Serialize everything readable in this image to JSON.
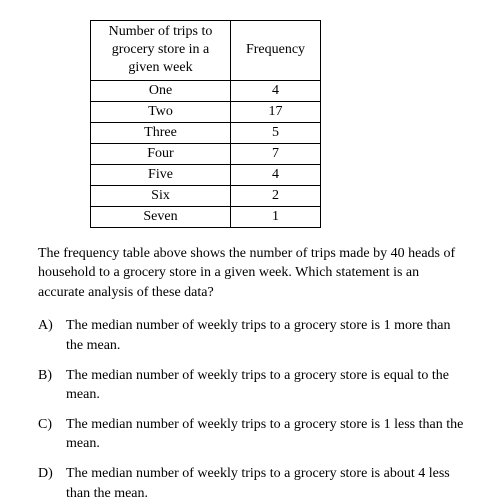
{
  "table": {
    "headers": {
      "trips": "Number of trips to grocery store in a given week",
      "frequency": "Frequency"
    },
    "rows": [
      {
        "label": "One",
        "freq": "4"
      },
      {
        "label": "Two",
        "freq": "17"
      },
      {
        "label": "Three",
        "freq": "5"
      },
      {
        "label": "Four",
        "freq": "7"
      },
      {
        "label": "Five",
        "freq": "4"
      },
      {
        "label": "Six",
        "freq": "2"
      },
      {
        "label": "Seven",
        "freq": "1"
      }
    ]
  },
  "question": "The frequency table above shows the number of trips made by 40 heads of household to a grocery store in a given week. Which statement is an accurate analysis of these data?",
  "choices": [
    {
      "letter": "A)",
      "text": "The median number of weekly trips to a grocery store is 1 more than the mean."
    },
    {
      "letter": "B)",
      "text": "The median number of weekly trips to a grocery store is equal to the mean."
    },
    {
      "letter": "C)",
      "text": "The median number of weekly trips to a grocery store is 1 less than the mean."
    },
    {
      "letter": "D)",
      "text": "The median number of weekly trips to a grocery store is about 4 less than the mean."
    }
  ]
}
